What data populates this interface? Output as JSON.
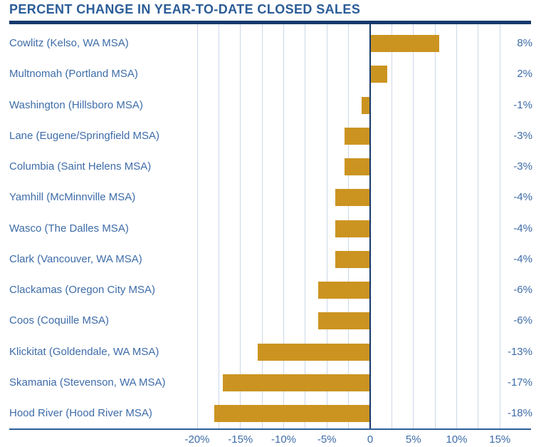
{
  "title": "PERCENT CHANGE IN YEAR-TO-DATE CLOSED SALES",
  "colors": {
    "title_text": "#2B5C97",
    "title_rule": "#17396B",
    "zero_line": "#17396B",
    "axis_line": "#2E5E99",
    "gridline": "#CDD7E8",
    "bar": "#CB9421",
    "label_text": "#3E6CA8",
    "background": "#FFFFFF"
  },
  "chart_data": {
    "type": "bar",
    "orientation": "horizontal",
    "title": "PERCENT CHANGE IN YEAR-TO-DATE CLOSED SALES",
    "unit": "%",
    "categories": [
      "Cowlitz (Kelso, WA MSA)",
      "Multnomah (Portland MSA)",
      "Washington (Hillsboro MSA)",
      "Lane (Eugene/Springfield MSA)",
      "Columbia (Saint Helens MSA)",
      "Yamhill (McMinnville MSA)",
      "Wasco (The Dalles MSA)",
      "Clark (Vancouver, WA MSA)",
      "Clackamas (Oregon City MSA)",
      "Coos (Coquille MSA)",
      "Klickitat (Goldendale, WA MSA)",
      "Skamania (Stevenson, WA MSA)",
      "Hood River (Hood River MSA)"
    ],
    "values": [
      8,
      2,
      -1,
      -3,
      -3,
      -4,
      -4,
      -4,
      -6,
      -6,
      -13,
      -17,
      -18
    ],
    "value_labels": [
      "8%",
      "2%",
      "-1%",
      "-3%",
      "-3%",
      "-4%",
      "-4%",
      "-4%",
      "-6%",
      "-6%",
      "-13%",
      "-17%",
      "-18%"
    ],
    "x_axis": {
      "min": -20,
      "max": 15,
      "minor_grid_step": 2.5,
      "ticks": [
        {
          "value": -20,
          "label": "-20%"
        },
        {
          "value": -15,
          "label": "-15%"
        },
        {
          "value": -10,
          "label": "-10%"
        },
        {
          "value": -5,
          "label": "-5%"
        },
        {
          "value": 0,
          "label": "0"
        },
        {
          "value": 5,
          "label": "5%"
        },
        {
          "value": 10,
          "label": "10%"
        },
        {
          "value": 15,
          "label": "15%"
        }
      ]
    },
    "grid": true,
    "legend": "none",
    "value_labels_position": "right-margin"
  }
}
